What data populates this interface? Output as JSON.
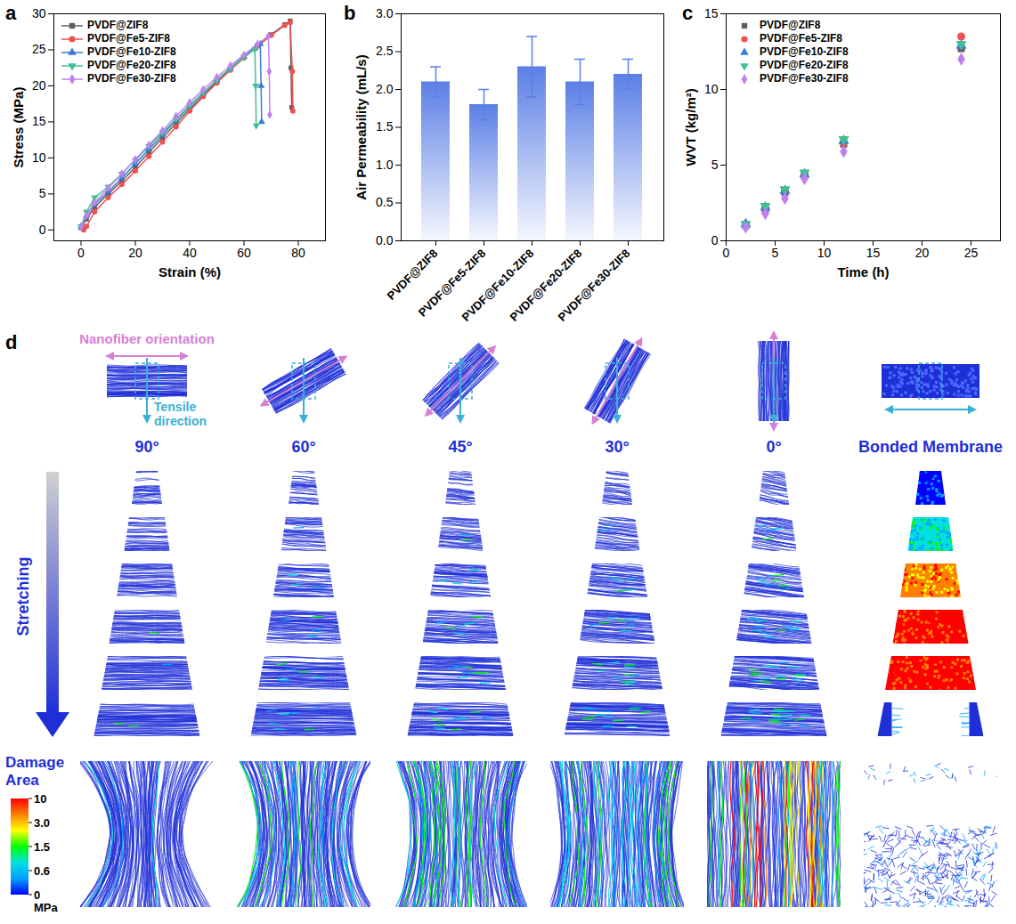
{
  "chart_data": [
    {
      "panel": "a",
      "type": "line",
      "x_label": "Strain (%)",
      "y_label": "Stress (MPa)",
      "xlim": [
        -10,
        90
      ],
      "xticks": [
        0,
        20,
        40,
        60,
        80
      ],
      "ylim": [
        -1.5,
        30
      ],
      "yticks": [
        0,
        5,
        10,
        15,
        20,
        25,
        30
      ],
      "legend": "top-left",
      "series": [
        {
          "name": "PVDF@ZIF8",
          "color": "#5f5f5f",
          "marker": "square",
          "x": [
            0,
            2,
            5,
            10,
            15,
            20,
            25,
            30,
            35,
            40,
            45,
            50,
            55,
            60,
            65,
            70,
            75,
            77,
            77.3,
            77.6
          ],
          "values": [
            0.3,
            1.5,
            3.2,
            5,
            6.8,
            8.7,
            10.8,
            12.8,
            14.8,
            16.8,
            18.7,
            20.6,
            22.3,
            24,
            25.6,
            27.1,
            28.5,
            29,
            22.5,
            17
          ]
        },
        {
          "name": "PVDF@Fe5-ZIF8",
          "color": "#f05050",
          "marker": "circle",
          "x": [
            1,
            2,
            5,
            10,
            15,
            20,
            25,
            30,
            35,
            40,
            45,
            50,
            55,
            60,
            65,
            70,
            75,
            77,
            77.8,
            78
          ],
          "values": [
            0,
            0.5,
            2.5,
            4.5,
            6.3,
            8.2,
            10.2,
            12.2,
            14.3,
            16.5,
            18.5,
            20.4,
            22.2,
            23.9,
            25.5,
            27,
            28.4,
            28.8,
            22,
            16.5
          ]
        },
        {
          "name": "PVDF@Fe10-ZIF8",
          "color": "#3a7bd5",
          "marker": "triangle",
          "x": [
            0,
            2,
            5,
            10,
            15,
            20,
            25,
            30,
            35,
            40,
            45,
            50,
            55,
            60,
            64,
            66,
            66.3,
            66.5
          ],
          "values": [
            0.5,
            2,
            3.6,
            5.3,
            7.2,
            9.2,
            11.2,
            13.2,
            15.2,
            17.2,
            19,
            20.8,
            22.5,
            24.1,
            25.2,
            25.8,
            20,
            15
          ]
        },
        {
          "name": "PVDF@Fe20-ZIF8",
          "color": "#40c090",
          "marker": "triangle-down",
          "x": [
            0,
            2,
            5,
            10,
            15,
            20,
            25,
            30,
            35,
            40,
            45,
            50,
            55,
            60,
            64,
            64.3,
            64.5
          ],
          "values": [
            0.5,
            2.5,
            4.5,
            6,
            7.8,
            9.7,
            11.6,
            13.5,
            15.4,
            17.3,
            19.1,
            20.8,
            22.4,
            24,
            25.1,
            20,
            14.5
          ]
        },
        {
          "name": "PVDF@Fe30-ZIF8",
          "color": "#c080f0",
          "marker": "diamond",
          "x": [
            0,
            2,
            5,
            10,
            15,
            20,
            25,
            30,
            35,
            40,
            45,
            50,
            55,
            60,
            65,
            69,
            69.3,
            69.5
          ],
          "values": [
            0.4,
            2,
            3.8,
            5.8,
            7.8,
            9.8,
            11.8,
            13.8,
            15.8,
            17.7,
            19.5,
            21.2,
            22.8,
            24.3,
            25.8,
            26.9,
            22,
            16
          ]
        }
      ]
    },
    {
      "panel": "b",
      "type": "bar",
      "y_label": "Air Permeability (mL/s)",
      "categories": [
        "PVDF@ZIF8",
        "PVDF@Fe5-ZIF8",
        "PVDF@Fe10-ZIF8",
        "PVDF@Fe20-ZIF8",
        "PVDF@Fe30-ZIF8"
      ],
      "values": [
        2.1,
        1.8,
        2.3,
        2.1,
        2.2
      ],
      "errors": [
        0.2,
        0.2,
        0.4,
        0.3,
        0.2
      ],
      "color": "#5b7fe6",
      "ylim": [
        0,
        3
      ],
      "yticks": [
        {
          "value": 0,
          "label": "0.0"
        },
        0.5,
        {
          "value": 1,
          "label": "1.0"
        },
        1.5,
        {
          "value": 2,
          "label": "2.0"
        },
        2.5,
        {
          "value": 3,
          "label": "3.0"
        }
      ]
    },
    {
      "panel": "c",
      "type": "scatter",
      "x_label": "Time (h)",
      "y_label": "WVT (kg/m²)",
      "xlim": [
        0,
        28
      ],
      "xticks": [
        0,
        5,
        10,
        15,
        20,
        25
      ],
      "ylim": [
        0,
        15
      ],
      "yticks": [
        0,
        5,
        10,
        15
      ],
      "legend": "top-left",
      "x": [
        2,
        4,
        6,
        8,
        12,
        24
      ],
      "series": [
        {
          "name": "PVDF@ZIF8",
          "color": "#5f5f5f",
          "marker": "square",
          "values": [
            1.0,
            2.0,
            3.2,
            4.3,
            6.4,
            12.7
          ]
        },
        {
          "name": "PVDF@Fe5-ZIF8",
          "color": "#f05050",
          "marker": "circle",
          "values": [
            1.1,
            2.2,
            3.3,
            4.4,
            6.5,
            13.5
          ]
        },
        {
          "name": "PVDF@Fe10-ZIF8",
          "color": "#3a7bd5",
          "marker": "triangle",
          "values": [
            1.1,
            2.2,
            3.3,
            4.4,
            6.6,
            12.9
          ]
        },
        {
          "name": "PVDF@Fe20-ZIF8",
          "color": "#40c090",
          "marker": "triangle-down",
          "values": [
            1.1,
            2.3,
            3.4,
            4.5,
            6.7,
            13.0
          ]
        },
        {
          "name": "PVDF@Fe30-ZIF8",
          "color": "#c080f0",
          "marker": "diamond",
          "values": [
            0.9,
            1.8,
            2.8,
            4.1,
            5.9,
            12.0
          ]
        }
      ]
    }
  ],
  "panel_d": {
    "panel": "d",
    "orientation_label": "Nanofiber orientation",
    "tensile_label": "Tensile direction",
    "columns": [
      "90°",
      "60°",
      "45°",
      "30°",
      "0°",
      "Bonded Membrane"
    ],
    "stretching_label": "Stretching",
    "damage_label": "Damage Area",
    "colorbar": {
      "ticks": [
        0,
        {
          "value": 0.6,
          "label": "0.6"
        },
        {
          "value": 1.5,
          "label": "1.5"
        },
        {
          "value": 3,
          "label": "3.0"
        },
        10
      ],
      "unit": "MPa",
      "colors": [
        "#0000ff",
        "#00a0ff",
        "#00e0e0",
        "#00ff00",
        "#ffff00",
        "#ff8000",
        "#ff0000"
      ]
    }
  }
}
